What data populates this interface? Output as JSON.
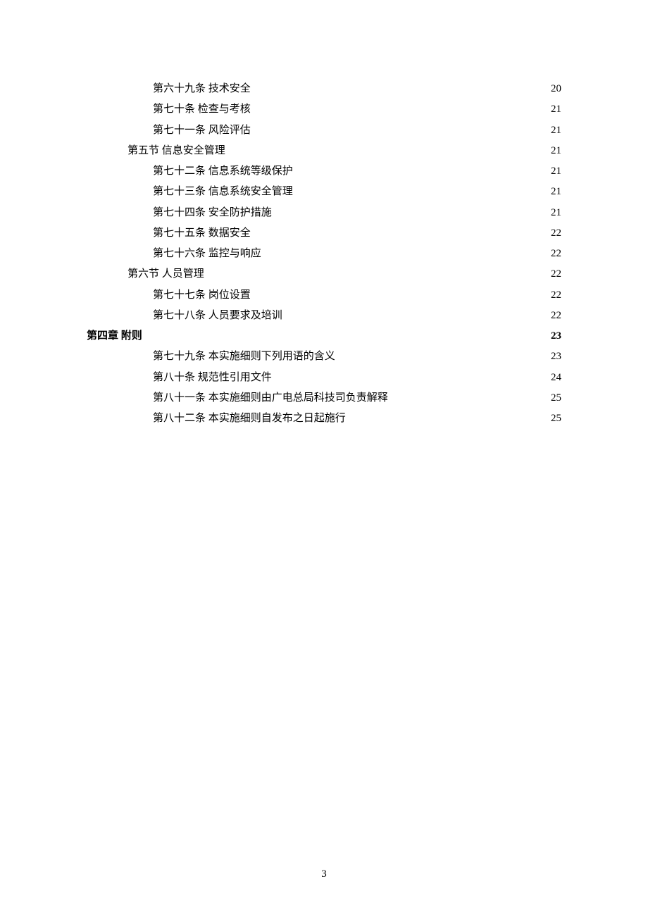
{
  "page_number": "3",
  "entries": [
    {
      "indent": 2,
      "bold": false,
      "label": "第六十九条  技术安全",
      "page": "20"
    },
    {
      "indent": 2,
      "bold": false,
      "label": "第七十条  检查与考核",
      "page": "21"
    },
    {
      "indent": 2,
      "bold": false,
      "label": "第七十一条  风险评估",
      "page": "21"
    },
    {
      "indent": 1,
      "bold": false,
      "label": "第五节  信息安全管理",
      "page": "21"
    },
    {
      "indent": 2,
      "bold": false,
      "label": "第七十二条  信息系统等级保护",
      "page": "21"
    },
    {
      "indent": 2,
      "bold": false,
      "label": "第七十三条  信息系统安全管理",
      "page": "21"
    },
    {
      "indent": 2,
      "bold": false,
      "label": "第七十四条  安全防护措施",
      "page": "21"
    },
    {
      "indent": 2,
      "bold": false,
      "label": "第七十五条  数据安全",
      "page": "22"
    },
    {
      "indent": 2,
      "bold": false,
      "label": "第七十六条  监控与响应",
      "page": "22"
    },
    {
      "indent": 1,
      "bold": false,
      "label": "第六节  人员管理",
      "page": "22"
    },
    {
      "indent": 2,
      "bold": false,
      "label": "第七十七条  岗位设置",
      "page": "22"
    },
    {
      "indent": 2,
      "bold": false,
      "label": "第七十八条  人员要求及培训",
      "page": "22"
    },
    {
      "indent": 0,
      "bold": true,
      "label": "第四章  附则",
      "page": "23"
    },
    {
      "indent": 2,
      "bold": false,
      "label": "第七十九条  本实施细则下列用语的含义",
      "page": "23"
    },
    {
      "indent": 2,
      "bold": false,
      "label": "第八十条  规范性引用文件",
      "page": "24"
    },
    {
      "indent": 2,
      "bold": false,
      "label": "第八十一条  本实施细则由广电总局科技司负责解释",
      "page": "25"
    },
    {
      "indent": 2,
      "bold": false,
      "label": "第八十二条  本实施细则自发布之日起施行",
      "page": "25"
    }
  ]
}
